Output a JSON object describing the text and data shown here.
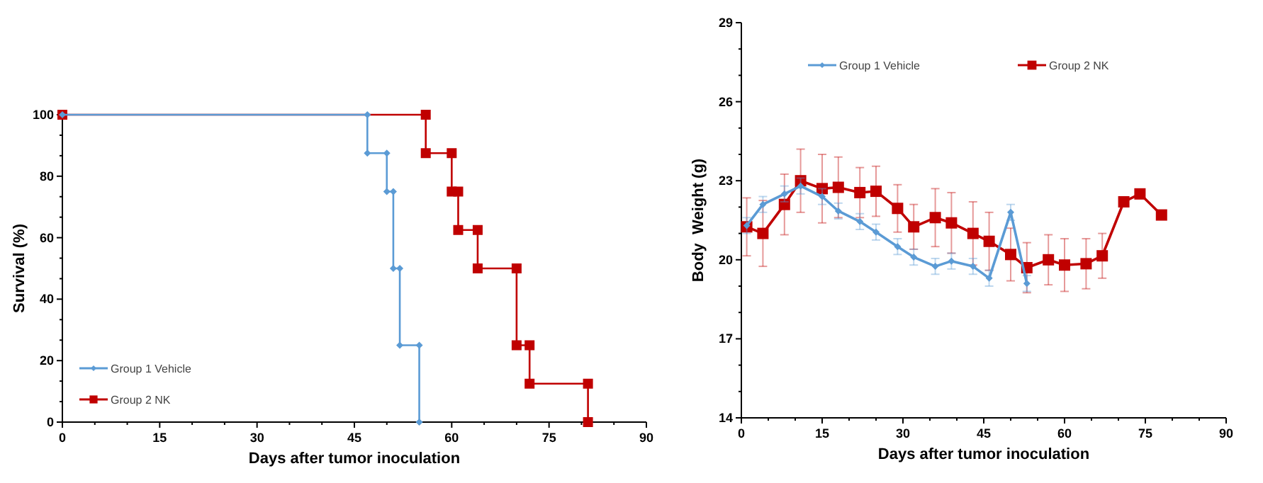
{
  "chart_data": [
    {
      "type": "line",
      "xlabel": "Days after tumor inoculation",
      "ylabel": "Survival (%)",
      "xlim": [
        0,
        90
      ],
      "xticks": [
        0,
        15,
        30,
        45,
        60,
        75,
        90
      ],
      "ylim": [
        0,
        100
      ],
      "yticks": [
        0,
        20,
        40,
        60,
        80,
        100
      ],
      "legend": "bottom left",
      "series": [
        {
          "name": "Group 1 Vehicle",
          "color": "#5b9bd5",
          "marker": "diamond",
          "x": [
            0,
            47,
            47,
            50,
            50,
            51,
            51,
            52,
            52,
            55,
            55
          ],
          "values": [
            100,
            100,
            87.5,
            87.5,
            75,
            75,
            50,
            50,
            25,
            25,
            0
          ]
        },
        {
          "name": "Group 2 NK",
          "color": "#c00000",
          "marker": "square",
          "x": [
            0,
            56,
            56,
            60,
            60,
            61,
            61,
            64,
            64,
            70,
            70,
            72,
            72,
            81,
            81
          ],
          "values": [
            100,
            100,
            87.5,
            87.5,
            75,
            75,
            62.5,
            62.5,
            50,
            50,
            25,
            25,
            12.5,
            12.5,
            0
          ]
        }
      ]
    },
    {
      "type": "line",
      "xlabel": "Days after tumor inoculation",
      "ylabel": "Body  Weight (g)",
      "xlim": [
        0,
        90
      ],
      "xticks": [
        0,
        15,
        30,
        45,
        60,
        75,
        90
      ],
      "ylim": [
        14,
        29
      ],
      "yticks": [
        14,
        17,
        20,
        23,
        26,
        29
      ],
      "legend": "top",
      "series": [
        {
          "name": "Group 1 Vehicle",
          "color": "#5b9bd5",
          "marker": "diamond",
          "x": [
            1,
            4,
            8,
            11,
            15,
            18,
            22,
            25,
            29,
            32,
            36,
            39,
            43,
            46,
            50,
            53
          ],
          "values": [
            21.3,
            22.1,
            22.5,
            22.8,
            22.4,
            21.85,
            21.45,
            21.05,
            20.5,
            20.1,
            19.75,
            19.95,
            19.75,
            19.3,
            21.8,
            19.1
          ],
          "errors": [
            0.3,
            0.3,
            0.3,
            0.3,
            0.3,
            0.3,
            0.3,
            0.3,
            0.3,
            0.3,
            0.3,
            0.3,
            0.3,
            0.3,
            0.3,
            0.3
          ]
        },
        {
          "name": "Group 2 NK",
          "color": "#c00000",
          "marker": "square",
          "x": [
            1,
            4,
            8,
            11,
            15,
            18,
            22,
            25,
            29,
            32,
            36,
            39,
            43,
            46,
            50,
            53,
            57,
            60,
            64,
            67,
            71,
            74,
            78
          ],
          "values": [
            21.25,
            21.0,
            22.1,
            23.0,
            22.7,
            22.75,
            22.55,
            22.6,
            21.95,
            21.25,
            21.6,
            21.4,
            21.0,
            20.7,
            20.2,
            19.7,
            20.0,
            19.8,
            19.85,
            20.15,
            22.2,
            22.5,
            21.7
          ],
          "errors": [
            1.1,
            1.25,
            1.15,
            1.2,
            1.3,
            1.15,
            0.95,
            0.95,
            0.9,
            0.85,
            1.1,
            1.15,
            1.2,
            1.1,
            1.0,
            0.95,
            0.95,
            1.0,
            0.95,
            0.85,
            null,
            null,
            null
          ]
        }
      ]
    }
  ]
}
